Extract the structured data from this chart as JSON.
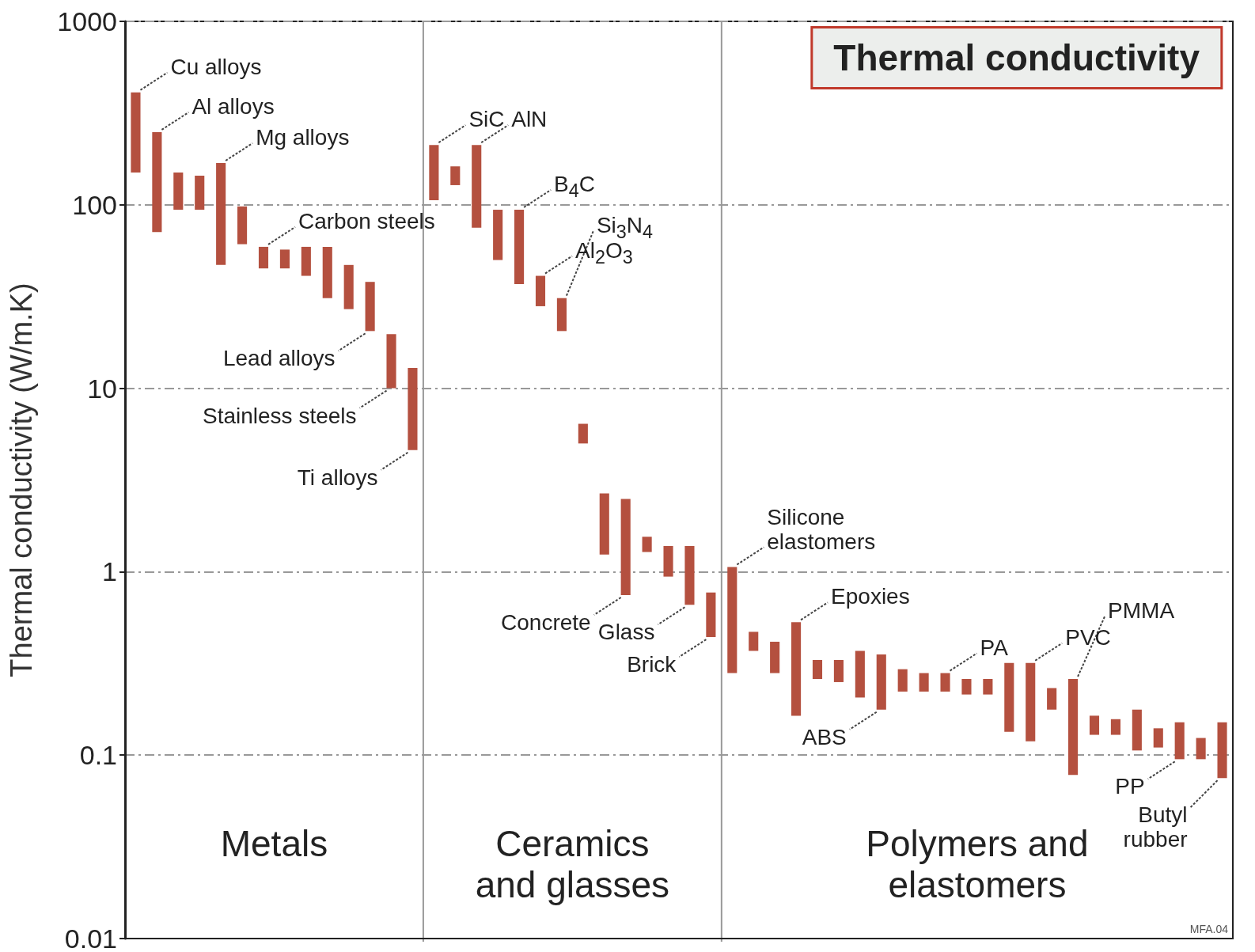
{
  "chart_data": {
    "type": "bar",
    "title": "Thermal conductivity",
    "ylabel": "Thermal conductivity (W/m.K)",
    "categories": [
      null,
      null,
      null,
      null,
      null,
      null,
      null,
      null,
      null,
      null,
      null,
      null,
      null,
      null,
      null,
      null,
      null,
      null,
      null,
      null,
      null,
      null,
      null,
      null,
      null,
      null,
      null,
      null,
      null,
      null,
      null,
      null,
      null,
      null,
      null,
      null,
      null,
      null,
      null,
      null,
      null,
      null,
      null,
      null,
      null,
      null,
      null,
      null,
      null,
      null,
      null,
      null
    ],
    "base": [
      150,
      71,
      94,
      94,
      47,
      61,
      45,
      45,
      41,
      31,
      27,
      20.5,
      10,
      4.6,
      106,
      128,
      75,
      50,
      37,
      28,
      20.5,
      5.0,
      1.24,
      0.745,
      1.28,
      0.94,
      0.66,
      0.44,
      0.28,
      0.37,
      0.28,
      0.164,
      0.26,
      0.25,
      0.206,
      0.177,
      0.222,
      0.222,
      0.222,
      0.214,
      0.214,
      0.134,
      0.119,
      0.177,
      0.078,
      0.129,
      0.129,
      0.106,
      0.11,
      0.095,
      0.095,
      0.075
    ],
    "values": [
      260,
      178,
      56,
      50,
      122,
      37,
      14,
      12,
      18,
      28,
      20,
      17.5,
      9.7,
      8.3,
      106,
      34,
      137,
      44,
      57,
      13,
      10.5,
      1.4,
      1.43,
      1.745,
      0.27,
      0.44,
      0.72,
      0.33,
      0.78,
      0.1,
      0.135,
      0.366,
      0.07,
      0.08,
      0.164,
      0.177,
      0.072,
      0.058,
      0.058,
      0.046,
      0.046,
      0.184,
      0.199,
      0.055,
      0.182,
      0.035,
      0.028,
      0.071,
      0.03,
      0.056,
      0.029,
      0.076
    ],
    "color": "#b4503f",
    "log": "y",
    "ylim": [
      0.01,
      1000
    ],
    "yticks": [
      0.01,
      0.1,
      1,
      10,
      100,
      1000
    ],
    "grid": "y",
    "tick_labels": "y",
    "annotations": [
      "Metals",
      "Ceramics\nand glasses",
      "Polymers and\nelastomers",
      "MFA.04",
      "Cu alloys",
      "Al alloys",
      "Mg alloys",
      "Carbon steels",
      "Lead alloys",
      "Stainless steels",
      "Ti alloys",
      "SiC",
      "AlN",
      "B$_{4}$C",
      "Al$_{2}$O$_{3}$",
      "Si$_{3}$N$_{4}$",
      "Concrete",
      "Glass",
      "Brick",
      "Silicone\nelastomers",
      "Epoxies",
      "ABS",
      "PA",
      "PVC",
      "PMMA",
      "PP",
      "Butyl\nrubber"
    ]
  }
}
